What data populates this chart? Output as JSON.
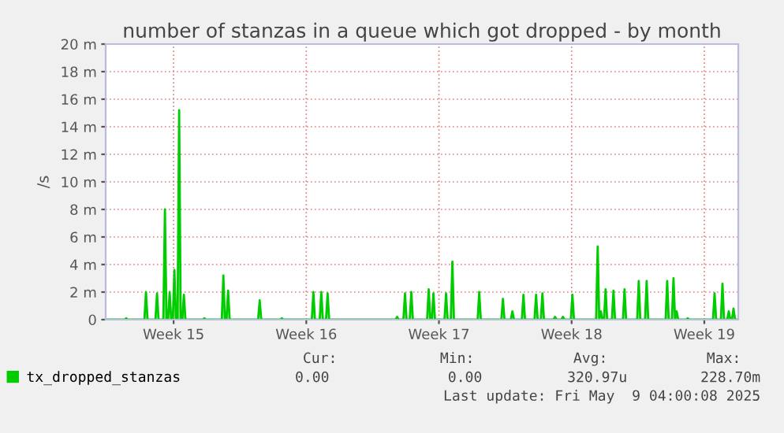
{
  "chart_data": {
    "type": "area",
    "title": "number of stanzas in a queue which got dropped - by month",
    "ylabel": "/s",
    "x": [
      "2025-04-06T00:00",
      "2025-04-07T00:00",
      "2025-04-07T02:00",
      "2025-04-07T04:00",
      "2025-04-08T01:00",
      "2025-04-08T03:00",
      "2025-04-08T05:00",
      "2025-04-08T15:00",
      "2025-04-08T17:00",
      "2025-04-08T19:00",
      "2025-04-09T01:00",
      "2025-04-09T03:00",
      "2025-04-09T05:00",
      "2025-04-09T07:00",
      "2025-04-09T09:00",
      "2025-04-09T11:00",
      "2025-04-09T13:00",
      "2025-04-09T15:00",
      "2025-04-09T17:00",
      "2025-04-09T19:00",
      "2025-04-09T21:00",
      "2025-04-09T23:00",
      "2025-04-10T01:00",
      "2025-04-10T03:00",
      "2025-04-10T05:00",
      "2025-04-11T03:00",
      "2025-04-11T05:00",
      "2025-04-11T07:00",
      "2025-04-12T03:00",
      "2025-04-12T05:00",
      "2025-04-12T07:00",
      "2025-04-12T09:00",
      "2025-04-12T11:00",
      "2025-04-12T13:00",
      "2025-04-14T01:00",
      "2025-04-14T03:00",
      "2025-04-14T05:00",
      "2025-04-15T05:00",
      "2025-04-15T07:00",
      "2025-04-15T09:00",
      "2025-04-16T21:00",
      "2025-04-16T23:00",
      "2025-04-17T01:00",
      "2025-04-17T07:00",
      "2025-04-17T09:00",
      "2025-04-17T11:00",
      "2025-04-17T15:00",
      "2025-04-17T17:00",
      "2025-04-17T19:00",
      "2025-04-21T07:00",
      "2025-04-21T09:00",
      "2025-04-21T11:00",
      "2025-04-21T17:00",
      "2025-04-21T19:00",
      "2025-04-21T21:00",
      "2025-04-22T01:00",
      "2025-04-22T03:00",
      "2025-04-22T05:00",
      "2025-04-22T23:00",
      "2025-04-23T01:00",
      "2025-04-23T03:00",
      "2025-04-23T05:00",
      "2025-04-23T07:00",
      "2025-04-23T09:00",
      "2025-04-23T21:00",
      "2025-04-23T23:00",
      "2025-04-24T01:00",
      "2025-04-24T05:00",
      "2025-04-24T07:00",
      "2025-04-24T09:00",
      "2025-04-25T15:00",
      "2025-04-25T17:00",
      "2025-04-25T19:00",
      "2025-04-26T21:00",
      "2025-04-26T23:00",
      "2025-04-27T01:00",
      "2025-04-27T09:00",
      "2025-04-27T11:00",
      "2025-04-27T13:00",
      "2025-04-27T23:00",
      "2025-04-28T01:00",
      "2025-04-28T03:00",
      "2025-04-28T15:00",
      "2025-04-28T17:00",
      "2025-04-28T19:00",
      "2025-04-28T23:00",
      "2025-04-29T01:00",
      "2025-04-29T03:00",
      "2025-04-29T15:00",
      "2025-04-29T17:00",
      "2025-04-29T19:00",
      "2025-04-30T01:00",
      "2025-04-30T03:00",
      "2025-04-30T05:00",
      "2025-04-30T13:00",
      "2025-04-30T15:00",
      "2025-04-30T17:00",
      "2025-05-01T21:00",
      "2025-05-01T23:00",
      "2025-05-02T01:00",
      "2025-05-02T01:00",
      "2025-05-02T03:00",
      "2025-05-02T05:00",
      "2025-05-02T07:00",
      "2025-05-02T09:00",
      "2025-05-02T11:00",
      "2025-05-02T17:00",
      "2025-05-02T19:00",
      "2025-05-02T21:00",
      "2025-05-03T07:00",
      "2025-05-03T09:00",
      "2025-05-03T11:00",
      "2025-05-04T01:00",
      "2025-05-04T03:00",
      "2025-05-04T05:00",
      "2025-05-04T11:00",
      "2025-05-04T13:00",
      "2025-05-04T15:00",
      "2025-05-05T13:00",
      "2025-05-05T15:00",
      "2025-05-05T17:00",
      "2025-05-05T21:00",
      "2025-05-05T23:00",
      "2025-05-06T01:00",
      "2025-05-06T01:00",
      "2025-05-06T03:00",
      "2025-05-06T05:00",
      "2025-05-06T15:00",
      "2025-05-06T17:00",
      "2025-05-06T19:00",
      "2025-05-08T01:00",
      "2025-05-08T03:00",
      "2025-05-08T05:00",
      "2025-05-08T11:00",
      "2025-05-08T13:00",
      "2025-05-08T15:00",
      "2025-05-08T19:00",
      "2025-05-08T21:00",
      "2025-05-08T23:00",
      "2025-05-09T01:00",
      "2025-05-09T03:00",
      "2025-05-09T05:00",
      "2025-05-09T09:00"
    ],
    "series": [
      {
        "name": "tx_dropped_stanzas",
        "color": "#00cc00",
        "values": [
          0,
          0,
          0.1,
          0,
          0,
          2.0,
          0,
          0,
          1.9,
          0,
          0,
          8.0,
          0,
          0,
          2.0,
          0,
          0,
          3.6,
          0,
          0,
          15.2,
          0,
          0,
          1.8,
          0,
          0,
          0.1,
          0,
          0,
          3.2,
          0,
          0,
          2.1,
          0,
          0,
          1.4,
          0,
          0,
          0.1,
          0,
          0,
          2.0,
          0,
          0,
          2.0,
          0,
          0,
          1.9,
          0,
          0,
          0.2,
          0,
          0,
          1.9,
          0,
          0,
          2.0,
          0,
          0,
          2.2,
          0,
          0,
          1.9,
          0,
          0,
          1.9,
          0,
          0,
          4.2,
          0,
          0,
          2.0,
          0,
          0,
          1.5,
          0,
          0,
          0.6,
          0,
          0,
          1.8,
          0,
          0,
          1.8,
          0,
          0,
          1.9,
          0,
          0,
          0.2,
          0,
          0,
          0.2,
          0,
          0,
          1.8,
          0,
          0,
          5.3,
          0,
          0,
          0.6,
          0,
          0,
          2.2,
          0,
          0,
          2.1,
          0,
          0,
          2.2,
          0,
          0,
          2.8,
          0,
          0,
          2.8,
          0,
          0,
          2.8,
          0,
          0,
          3.0,
          0,
          0,
          0.6,
          0,
          0,
          0.1,
          0,
          0,
          1.9,
          0,
          0,
          2.6,
          0,
          0,
          0.6,
          0,
          0,
          0.8,
          0,
          0
        ]
      }
    ],
    "xlim": [
      "2025-04-06T00:00",
      "2025-05-09T09:00"
    ],
    "xticks": [
      {
        "value": "2025-04-09T14:00",
        "label": "Week 15"
      },
      {
        "value": "2025-04-16T14:00",
        "label": "Week 16"
      },
      {
        "value": "2025-04-23T14:00",
        "label": "Week 17"
      },
      {
        "value": "2025-04-30T14:00",
        "label": "Week 18"
      },
      {
        "value": "2025-05-07T14:00",
        "label": "Week 19"
      }
    ],
    "ylim": [
      0,
      20
    ],
    "yticks": [
      0,
      {
        "value": 2,
        "label": "2 m"
      },
      {
        "value": 4,
        "label": "4 m"
      },
      {
        "value": 6,
        "label": "6 m"
      },
      {
        "value": 8,
        "label": "8 m"
      },
      {
        "value": 10,
        "label": "10 m"
      },
      {
        "value": 12,
        "label": "12 m"
      },
      {
        "value": 14,
        "label": "14 m"
      },
      {
        "value": 16,
        "label": "16 m"
      },
      {
        "value": 18,
        "label": "18 m"
      },
      {
        "value": 20,
        "label": "20 m"
      }
    ],
    "grid": true,
    "legend": "bottom",
    "annotations": [
      "Cur:",
      "0.00",
      "Min:",
      "0.00",
      "Avg:",
      "320.97u",
      "Max:",
      "228.70m",
      "Last update: Fri May  9 04:00:08 2025"
    ]
  }
}
